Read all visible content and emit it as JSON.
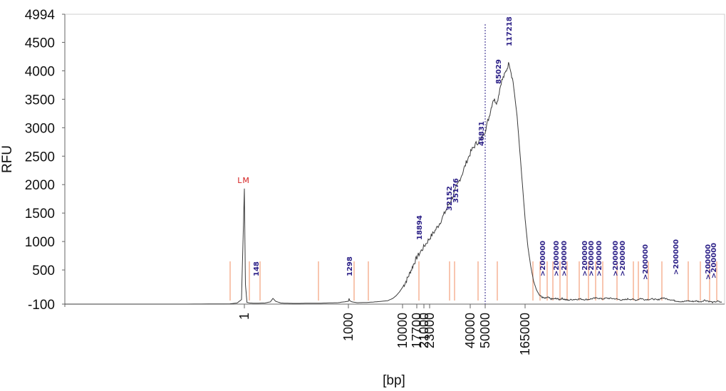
{
  "chart_data": {
    "type": "line",
    "title": "",
    "xlabel": "[bp]",
    "ylabel": "RFU",
    "ylim": [
      -100,
      4994
    ],
    "y_ticks": [
      "-100",
      "500",
      "1000",
      "1500",
      "2000",
      "2500",
      "3000",
      "3500",
      "4000",
      "4500",
      "4994"
    ],
    "x_ticks": [
      "1",
      "1000",
      "10000",
      "17700",
      "21000",
      "23000",
      "40000",
      "50000",
      "165000"
    ],
    "grid": false,
    "line_color": "#3a3a3a",
    "peak_color": "#2a1e86",
    "marker_color": "#d42020",
    "region_line_color": "#f4a07a",
    "marker": {
      "label": "LM",
      "size_bp": 1,
      "rfu": 1930
    },
    "peaks": [
      "148",
      "1298",
      "18894",
      "32152",
      "35176",
      "46831",
      "85029",
      "117218",
      ">200000",
      ">200000",
      ">200000",
      ">200000",
      ">200000",
      ">200000",
      ">200000",
      ">200000",
      ">200000",
      ">200000",
      ">200000",
      ">200000"
    ],
    "trace": {
      "x": [
        -0.25,
        0.3,
        0.6,
        0.9,
        0.95,
        0.98,
        1.0,
        1.02,
        1.05,
        1.1,
        1.2,
        1.4,
        1.5,
        1.55,
        1.6,
        1.7,
        1.8,
        2.0,
        2.2,
        2.4,
        2.6,
        2.8,
        3.0,
        3.04,
        3.08,
        3.2,
        3.5,
        4.0,
        4.4,
        4.8,
        5.3,
        5.6,
        5.8,
        6.0,
        6.2,
        6.4,
        6.6,
        6.8,
        7.0,
        7.2,
        7.4,
        7.6,
        7.8,
        8.0,
        8.2,
        8.4,
        8.6,
        8.8,
        9.0,
        9.2,
        9.4,
        9.6,
        9.8,
        10.0,
        10.2,
        10.4,
        10.6,
        10.8,
        11.0,
        11.2,
        11.4,
        11.6,
        11.8,
        12.0,
        12.2,
        12.4,
        12.6,
        12.8,
        13.0,
        13.2,
        13.4,
        13.6,
        13.8,
        14.0,
        14.2,
        14.4,
        14.6,
        14.8,
        15.0,
        15.3,
        15.6,
        15.9,
        16.2,
        16.5,
        16.8,
        17.1,
        17.4,
        17.7,
        18.0,
        18.3,
        18.6,
        18.9,
        19.2,
        19.5,
        19.8,
        20.1,
        20.4,
        20.7,
        21.0,
        21.3,
        21.6,
        21.9,
        22.2,
        22.5,
        22.8,
        23.1,
        23.4,
        23.7,
        24.0,
        24.3,
        24.6,
        24.9,
        25.2,
        25.5,
        25.8
      ],
      "y": [
        -100,
        -100,
        -100,
        -95,
        -80,
        -20,
        1930,
        250,
        -70,
        -80,
        -85,
        -80,
        -60,
        0,
        -50,
        -80,
        -85,
        -88,
        -85,
        -85,
        -80,
        -75,
        -50,
        0,
        -40,
        -60,
        -75,
        -72,
        -65,
        -55,
        -40,
        0,
        50,
        120,
        210,
        320,
        450,
        590,
        720,
        840,
        960,
        1080,
        1190,
        1320,
        1480,
        1650,
        1810,
        2010,
        2200,
        2420,
        2600,
        2720,
        2780,
        2950,
        3200,
        3500,
        3450,
        3800,
        3950,
        4150,
        3800,
        3200,
        2300,
        1400,
        900,
        560,
        300,
        150,
        60,
        20,
        0,
        20,
        -10,
        -10,
        0,
        -20,
        0,
        -20,
        -30,
        -20,
        -15,
        -10,
        -20,
        -15,
        0,
        10,
        -10,
        5,
        0,
        -5,
        -20,
        -30,
        -10,
        -15,
        -30,
        0,
        -20,
        -15,
        -10,
        -30,
        10,
        -5,
        -20,
        -40,
        -50,
        -60,
        -40,
        -55,
        -45,
        -60,
        -30,
        -50,
        -70,
        -50,
        -70
      ]
    }
  }
}
